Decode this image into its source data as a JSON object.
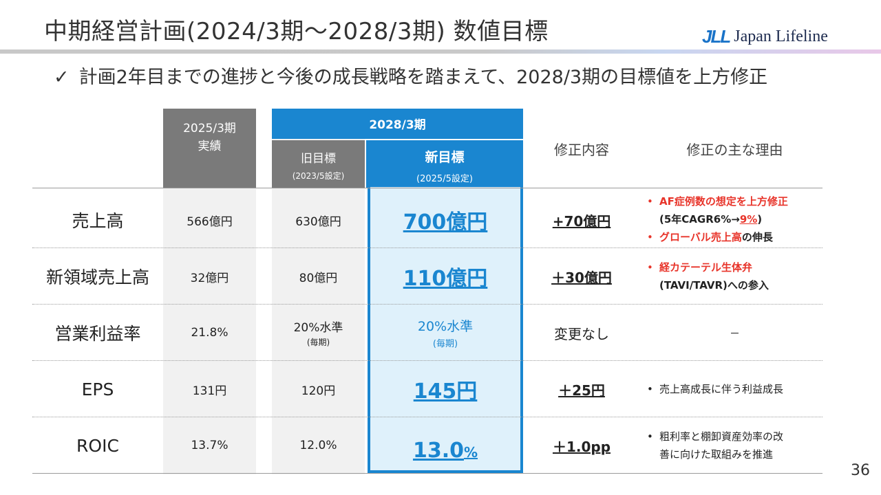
{
  "header": {
    "title": "中期経営計画(2024/3期～2028/3期) 数値目標",
    "logo_mark": "JLL",
    "logo_text": "Japan Lifeline"
  },
  "subtitle": {
    "check": "✓",
    "text": "計画2年目までの進捗と今後の成長戦略を踏まえて、2028/3期の目標値を上方修正"
  },
  "table": {
    "head_2025_line1": "2025/3期",
    "head_2025_line2": "実績",
    "head_2028": "2028/3期",
    "head_old_line1": "旧目標",
    "head_old_line2": "(2023/5設定)",
    "head_new_line1": "新目標",
    "head_new_line2": "(2025/5設定)",
    "head_change": "修正内容",
    "head_reason": "修正の主な理由",
    "rows": [
      {
        "metric": "売上高",
        "actual": "566億円",
        "old": "630億円",
        "new": "700億円",
        "change": "+70億円",
        "reason": {
          "b1_red": "AF症例数の想定を上方修正",
          "b1_l2_pre": "(5年CAGR6%→",
          "b1_l2_red": "9%",
          "b1_l2_post": ")",
          "b2_red": "グローバル売上高",
          "b2_post": "の伸長"
        }
      },
      {
        "metric": "新領域売上高",
        "actual": "32億円",
        "old": "80億円",
        "new": "110億円",
        "change": "＋30億円",
        "reason": {
          "b1_red": "経カテーテル生体弁",
          "b1_l2": "(TAVI/TAVR)への参入"
        }
      },
      {
        "metric": "営業利益率",
        "actual": "21.8%",
        "old": "20%水準",
        "old_sub": "(毎期)",
        "new": "20%水準",
        "new_sub": "(毎期)",
        "change": "変更なし",
        "reason": {
          "dash": "－"
        }
      },
      {
        "metric": "EPS",
        "actual": "131円",
        "old": "120円",
        "new": "145円",
        "change": "＋25円",
        "reason": {
          "b1": "売上高成長に伴う利益成長"
        }
      },
      {
        "metric": "ROIC",
        "actual": "13.7%",
        "old": "12.0%",
        "new_num": "13.0",
        "new_unit": "%",
        "change": "＋1.0pp",
        "reason": {
          "b1": "粗利率と棚卸資産効率の改",
          "b1_l2": "善に向けた取組みを推進"
        }
      }
    ],
    "bullet": "•"
  },
  "page_number": "36",
  "colors": {
    "accent_blue": "#1a86d0",
    "header_grey": "#7a7a7a",
    "highlight_red": "#e8342a",
    "new_col_bg": "#dff1fb"
  }
}
